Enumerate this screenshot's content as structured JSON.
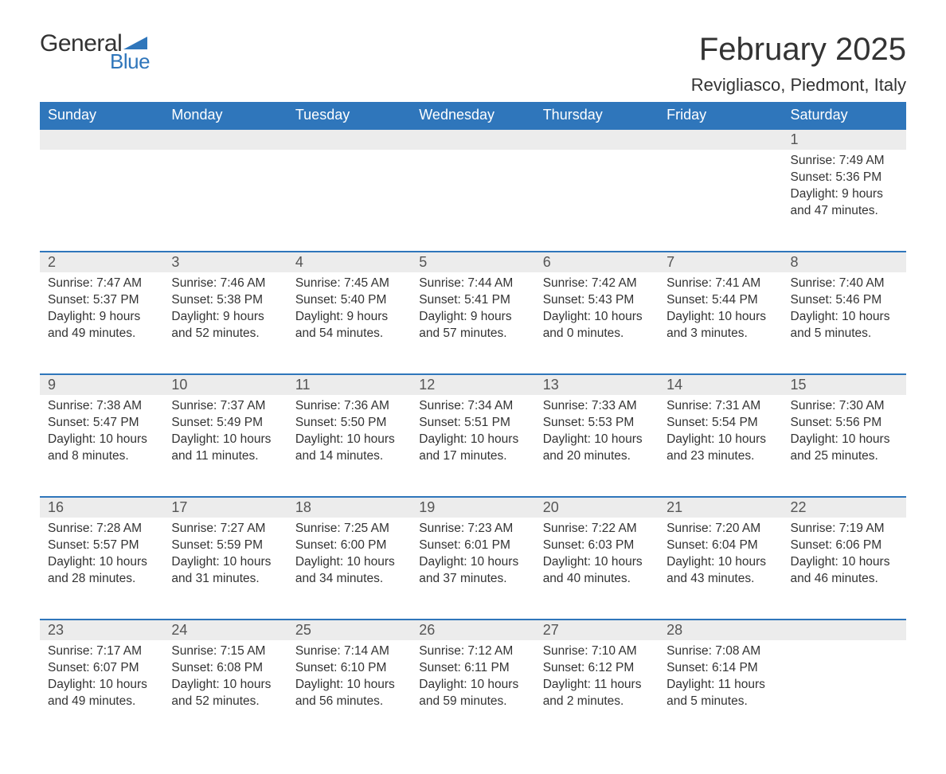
{
  "logo": {
    "text1": "General",
    "text2": "Blue",
    "color1": "#333333",
    "color2": "#2f76bb"
  },
  "title": "February 2025",
  "location": "Revigliasco, Piedmont, Italy",
  "colors": {
    "header_bg": "#2f76bb",
    "header_text": "#ffffff",
    "daynum_bg": "#ececec",
    "row_border": "#2f76bb",
    "text": "#333333",
    "background": "#ffffff"
  },
  "weekdays": [
    "Sunday",
    "Monday",
    "Tuesday",
    "Wednesday",
    "Thursday",
    "Friday",
    "Saturday"
  ],
  "weeks": [
    [
      null,
      null,
      null,
      null,
      null,
      null,
      {
        "n": "1",
        "sr": "Sunrise: 7:49 AM",
        "ss": "Sunset: 5:36 PM",
        "d1": "Daylight: 9 hours",
        "d2": "and 47 minutes."
      }
    ],
    [
      {
        "n": "2",
        "sr": "Sunrise: 7:47 AM",
        "ss": "Sunset: 5:37 PM",
        "d1": "Daylight: 9 hours",
        "d2": "and 49 minutes."
      },
      {
        "n": "3",
        "sr": "Sunrise: 7:46 AM",
        "ss": "Sunset: 5:38 PM",
        "d1": "Daylight: 9 hours",
        "d2": "and 52 minutes."
      },
      {
        "n": "4",
        "sr": "Sunrise: 7:45 AM",
        "ss": "Sunset: 5:40 PM",
        "d1": "Daylight: 9 hours",
        "d2": "and 54 minutes."
      },
      {
        "n": "5",
        "sr": "Sunrise: 7:44 AM",
        "ss": "Sunset: 5:41 PM",
        "d1": "Daylight: 9 hours",
        "d2": "and 57 minutes."
      },
      {
        "n": "6",
        "sr": "Sunrise: 7:42 AM",
        "ss": "Sunset: 5:43 PM",
        "d1": "Daylight: 10 hours",
        "d2": "and 0 minutes."
      },
      {
        "n": "7",
        "sr": "Sunrise: 7:41 AM",
        "ss": "Sunset: 5:44 PM",
        "d1": "Daylight: 10 hours",
        "d2": "and 3 minutes."
      },
      {
        "n": "8",
        "sr": "Sunrise: 7:40 AM",
        "ss": "Sunset: 5:46 PM",
        "d1": "Daylight: 10 hours",
        "d2": "and 5 minutes."
      }
    ],
    [
      {
        "n": "9",
        "sr": "Sunrise: 7:38 AM",
        "ss": "Sunset: 5:47 PM",
        "d1": "Daylight: 10 hours",
        "d2": "and 8 minutes."
      },
      {
        "n": "10",
        "sr": "Sunrise: 7:37 AM",
        "ss": "Sunset: 5:49 PM",
        "d1": "Daylight: 10 hours",
        "d2": "and 11 minutes."
      },
      {
        "n": "11",
        "sr": "Sunrise: 7:36 AM",
        "ss": "Sunset: 5:50 PM",
        "d1": "Daylight: 10 hours",
        "d2": "and 14 minutes."
      },
      {
        "n": "12",
        "sr": "Sunrise: 7:34 AM",
        "ss": "Sunset: 5:51 PM",
        "d1": "Daylight: 10 hours",
        "d2": "and 17 minutes."
      },
      {
        "n": "13",
        "sr": "Sunrise: 7:33 AM",
        "ss": "Sunset: 5:53 PM",
        "d1": "Daylight: 10 hours",
        "d2": "and 20 minutes."
      },
      {
        "n": "14",
        "sr": "Sunrise: 7:31 AM",
        "ss": "Sunset: 5:54 PM",
        "d1": "Daylight: 10 hours",
        "d2": "and 23 minutes."
      },
      {
        "n": "15",
        "sr": "Sunrise: 7:30 AM",
        "ss": "Sunset: 5:56 PM",
        "d1": "Daylight: 10 hours",
        "d2": "and 25 minutes."
      }
    ],
    [
      {
        "n": "16",
        "sr": "Sunrise: 7:28 AM",
        "ss": "Sunset: 5:57 PM",
        "d1": "Daylight: 10 hours",
        "d2": "and 28 minutes."
      },
      {
        "n": "17",
        "sr": "Sunrise: 7:27 AM",
        "ss": "Sunset: 5:59 PM",
        "d1": "Daylight: 10 hours",
        "d2": "and 31 minutes."
      },
      {
        "n": "18",
        "sr": "Sunrise: 7:25 AM",
        "ss": "Sunset: 6:00 PM",
        "d1": "Daylight: 10 hours",
        "d2": "and 34 minutes."
      },
      {
        "n": "19",
        "sr": "Sunrise: 7:23 AM",
        "ss": "Sunset: 6:01 PM",
        "d1": "Daylight: 10 hours",
        "d2": "and 37 minutes."
      },
      {
        "n": "20",
        "sr": "Sunrise: 7:22 AM",
        "ss": "Sunset: 6:03 PM",
        "d1": "Daylight: 10 hours",
        "d2": "and 40 minutes."
      },
      {
        "n": "21",
        "sr": "Sunrise: 7:20 AM",
        "ss": "Sunset: 6:04 PM",
        "d1": "Daylight: 10 hours",
        "d2": "and 43 minutes."
      },
      {
        "n": "22",
        "sr": "Sunrise: 7:19 AM",
        "ss": "Sunset: 6:06 PM",
        "d1": "Daylight: 10 hours",
        "d2": "and 46 minutes."
      }
    ],
    [
      {
        "n": "23",
        "sr": "Sunrise: 7:17 AM",
        "ss": "Sunset: 6:07 PM",
        "d1": "Daylight: 10 hours",
        "d2": "and 49 minutes."
      },
      {
        "n": "24",
        "sr": "Sunrise: 7:15 AM",
        "ss": "Sunset: 6:08 PM",
        "d1": "Daylight: 10 hours",
        "d2": "and 52 minutes."
      },
      {
        "n": "25",
        "sr": "Sunrise: 7:14 AM",
        "ss": "Sunset: 6:10 PM",
        "d1": "Daylight: 10 hours",
        "d2": "and 56 minutes."
      },
      {
        "n": "26",
        "sr": "Sunrise: 7:12 AM",
        "ss": "Sunset: 6:11 PM",
        "d1": "Daylight: 10 hours",
        "d2": "and 59 minutes."
      },
      {
        "n": "27",
        "sr": "Sunrise: 7:10 AM",
        "ss": "Sunset: 6:12 PM",
        "d1": "Daylight: 11 hours",
        "d2": "and 2 minutes."
      },
      {
        "n": "28",
        "sr": "Sunrise: 7:08 AM",
        "ss": "Sunset: 6:14 PM",
        "d1": "Daylight: 11 hours",
        "d2": "and 5 minutes."
      },
      null
    ]
  ]
}
